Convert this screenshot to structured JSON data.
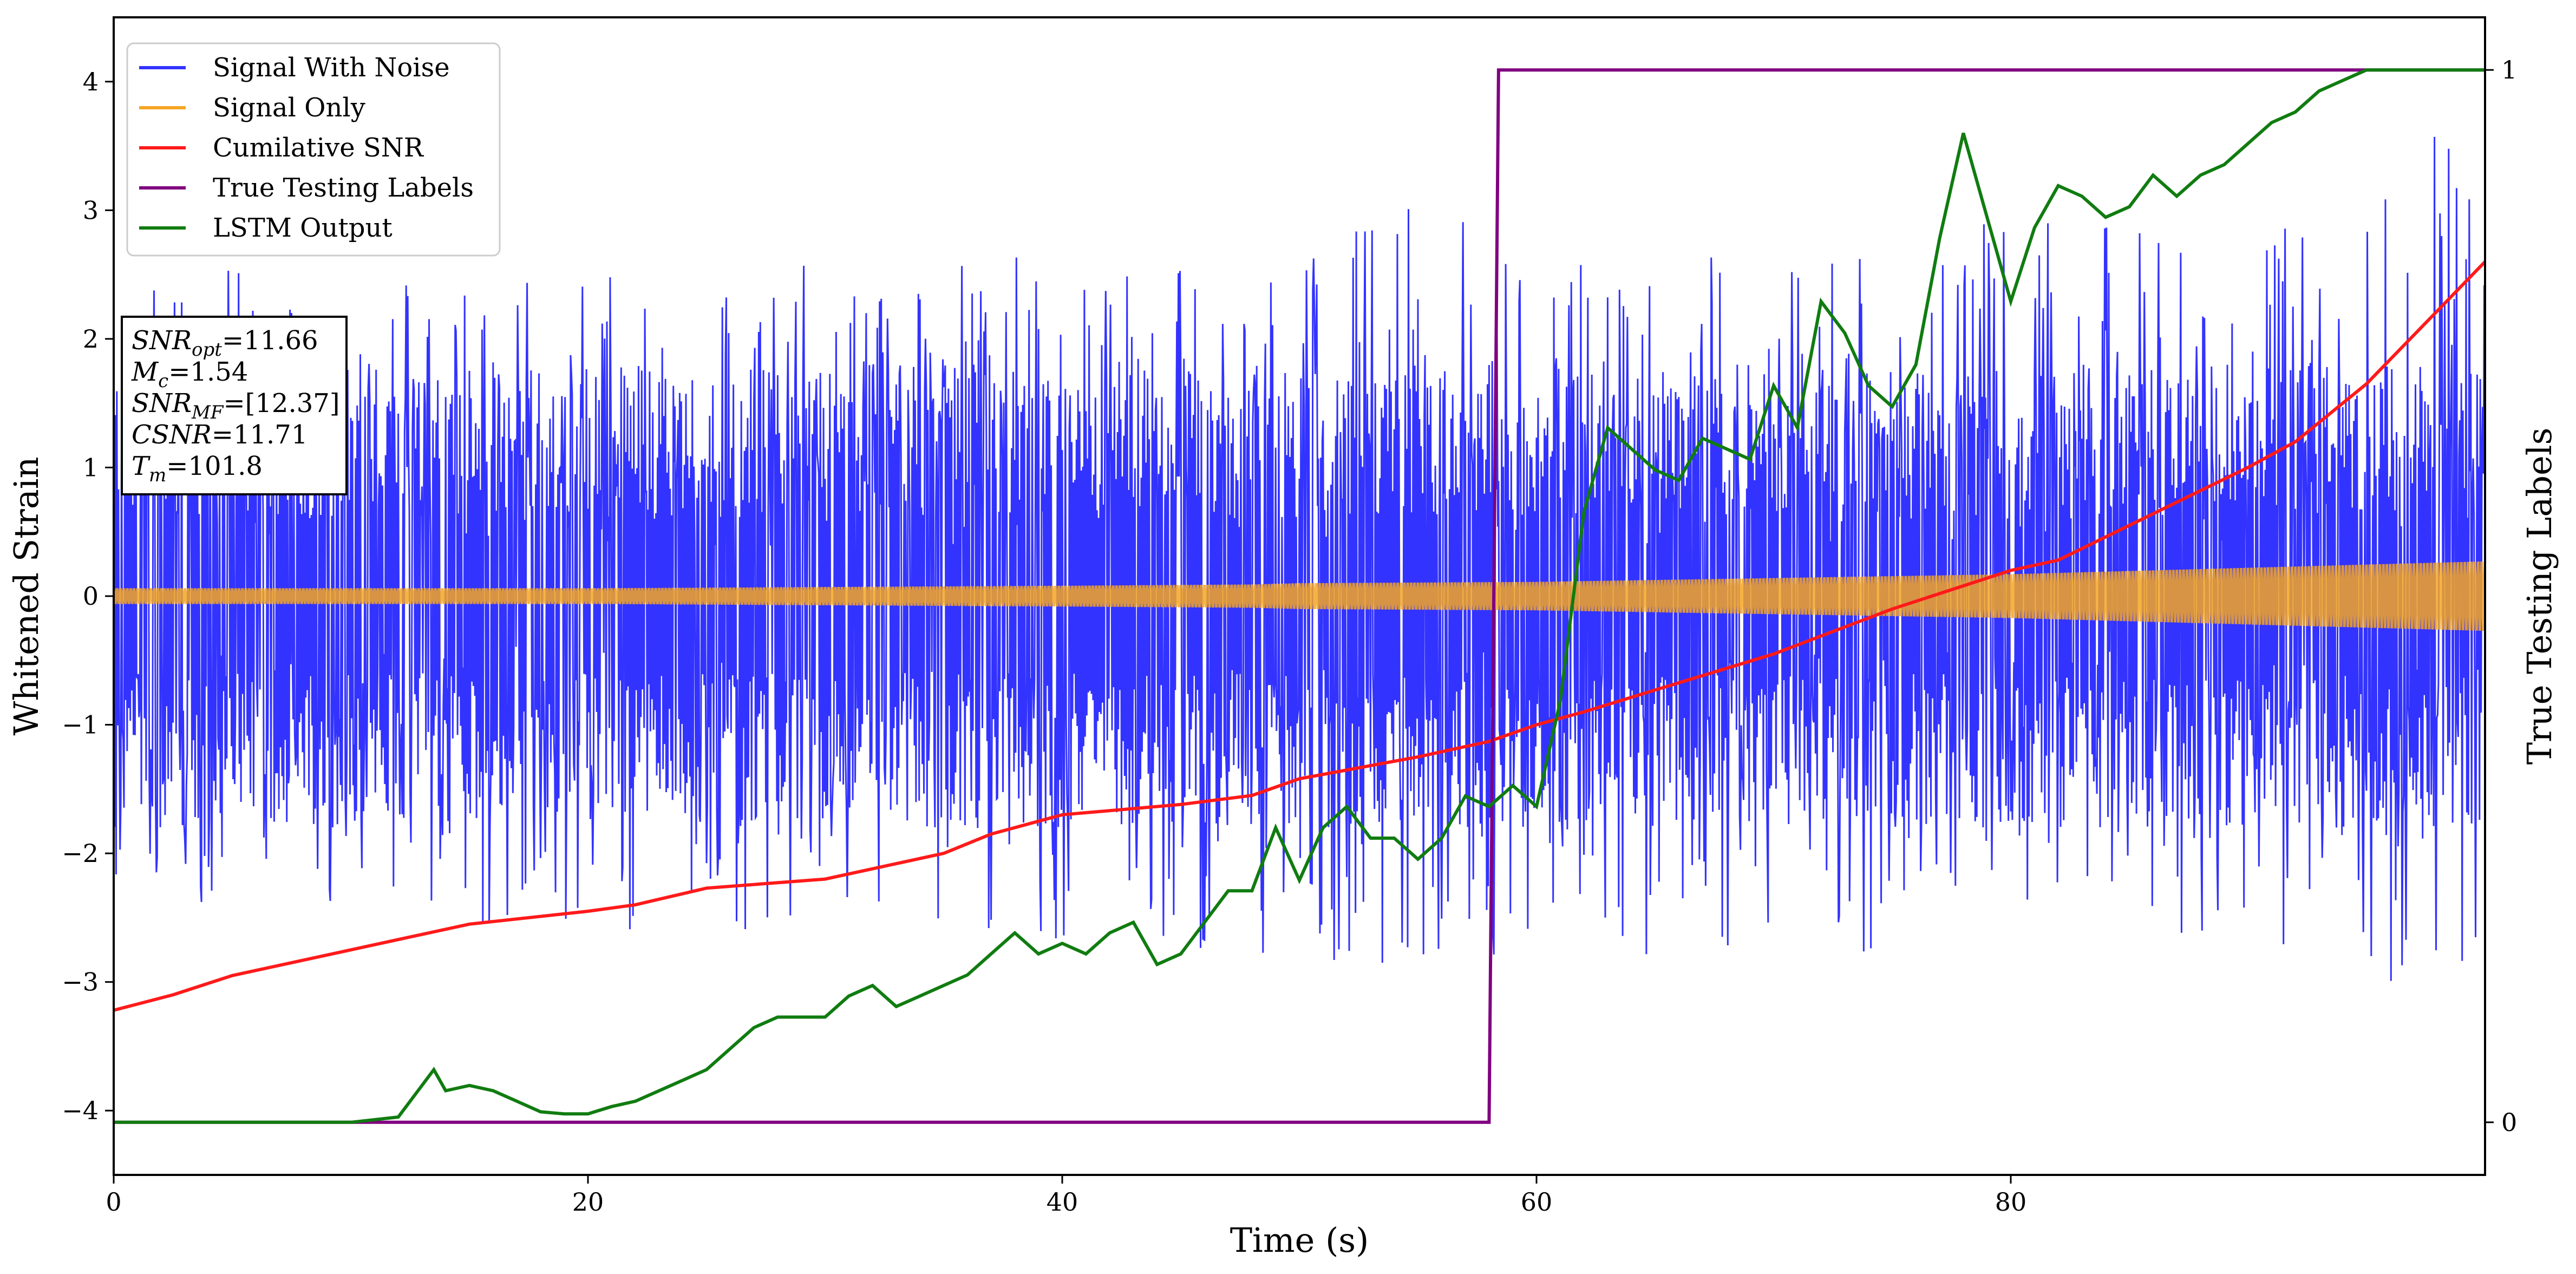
{
  "chart_data": {
    "type": "line",
    "xlabel": "Time (s)",
    "ylabel": "Whitened Strain",
    "y2label": "True Testing Labels",
    "xlim": [
      0,
      100
    ],
    "ylim": [
      -4.5,
      4.5
    ],
    "y2lim": [
      -0.05,
      1.05
    ],
    "xticks": [
      0,
      20,
      40,
      60,
      80
    ],
    "yticks": [
      -4,
      -3,
      -2,
      -1,
      0,
      1,
      2,
      3,
      4
    ],
    "y2ticks": [
      0,
      1
    ],
    "legend_position": "upper-left",
    "series": [
      {
        "name": "Signal With Noise",
        "axis": "left",
        "color": "#3333ff",
        "envelope": {
          "x": [
            0,
            10,
            20,
            30,
            40,
            50,
            55,
            60,
            65,
            70,
            75,
            80,
            85,
            90,
            95,
            98,
            100
          ],
          "upper": [
            2.5,
            2.6,
            2.6,
            2.6,
            2.7,
            2.7,
            3.2,
            2.6,
            2.7,
            2.7,
            2.9,
            2.9,
            2.9,
            2.8,
            3.0,
            4.1,
            2.8
          ],
          "lower": [
            -2.4,
            -2.6,
            -2.6,
            -2.6,
            -2.7,
            -2.8,
            -3.0,
            -2.7,
            -2.8,
            -2.8,
            -2.8,
            -2.8,
            -2.8,
            -2.8,
            -2.8,
            -3.6,
            -2.6
          ]
        }
      },
      {
        "name": "Signal Only",
        "axis": "left",
        "color": "#f5a623",
        "amplitude": {
          "x": [
            0,
            20,
            30,
            40,
            48,
            50,
            60,
            70,
            80,
            90,
            100
          ],
          "values": [
            0.06,
            0.06,
            0.07,
            0.08,
            0.09,
            0.1,
            0.11,
            0.14,
            0.17,
            0.22,
            0.27
          ]
        }
      },
      {
        "name": "Cumilative SNR",
        "axis": "left",
        "color": "#ff1a1a",
        "x": [
          0,
          2.5,
          5,
          10,
          15,
          20,
          22,
          25,
          30,
          35,
          37,
          40,
          45,
          48,
          50,
          55,
          58,
          60,
          62,
          65,
          70,
          75,
          78,
          80,
          82,
          85,
          90,
          92,
          95,
          100
        ],
        "y": [
          -3.22,
          -3.1,
          -2.95,
          -2.75,
          -2.55,
          -2.45,
          -2.4,
          -2.27,
          -2.2,
          -2.0,
          -1.85,
          -1.7,
          -1.62,
          -1.55,
          -1.42,
          -1.25,
          -1.13,
          -1.0,
          -0.9,
          -0.73,
          -0.45,
          -0.1,
          0.08,
          0.2,
          0.28,
          0.55,
          1.0,
          1.2,
          1.65,
          2.6
        ]
      },
      {
        "name": "True Testing Labels",
        "axis": "right",
        "color": "#800080",
        "x": [
          0,
          58,
          58.4,
          100
        ],
        "y": [
          0,
          0,
          1,
          1
        ]
      },
      {
        "name": "LSTM Output",
        "axis": "right",
        "color": "#107c10",
        "x": [
          0,
          10,
          12,
          13.5,
          14,
          15,
          16,
          17,
          18,
          19,
          20,
          21,
          22,
          23,
          24,
          25,
          26,
          27,
          28,
          29,
          30,
          31,
          32,
          33,
          34,
          35,
          36,
          37,
          38,
          39,
          40,
          41,
          42,
          43,
          44,
          45,
          46,
          47,
          48,
          49,
          50,
          51,
          52,
          53,
          54,
          55,
          56,
          57,
          58,
          59,
          60,
          61,
          62,
          63,
          64,
          65,
          66,
          67,
          68,
          69,
          70,
          71,
          72,
          73,
          74,
          75,
          76,
          77,
          78,
          79,
          80,
          81,
          82,
          83,
          84,
          85,
          86,
          87,
          88,
          89,
          90,
          91,
          92,
          93,
          94,
          95,
          96,
          97,
          98,
          100
        ],
        "y": [
          0,
          0,
          0.005,
          0.05,
          0.03,
          0.035,
          0.03,
          0.02,
          0.01,
          0.008,
          0.008,
          0.015,
          0.02,
          0.03,
          0.04,
          0.05,
          0.07,
          0.09,
          0.1,
          0.1,
          0.1,
          0.12,
          0.13,
          0.11,
          0.12,
          0.13,
          0.14,
          0.16,
          0.18,
          0.16,
          0.17,
          0.16,
          0.18,
          0.19,
          0.15,
          0.16,
          0.19,
          0.22,
          0.22,
          0.28,
          0.23,
          0.28,
          0.3,
          0.27,
          0.27,
          0.25,
          0.27,
          0.31,
          0.3,
          0.32,
          0.3,
          0.4,
          0.58,
          0.66,
          0.64,
          0.62,
          0.61,
          0.65,
          0.64,
          0.63,
          0.7,
          0.66,
          0.78,
          0.75,
          0.7,
          0.68,
          0.72,
          0.84,
          0.94,
          0.86,
          0.78,
          0.85,
          0.89,
          0.88,
          0.86,
          0.87,
          0.9,
          0.88,
          0.9,
          0.91,
          0.93,
          0.95,
          0.96,
          0.98,
          0.99,
          1,
          1,
          1,
          1,
          1
        ]
      }
    ],
    "annotation": {
      "lines": [
        {
          "label": "SNR",
          "subscript": "opt",
          "value": "=11.66"
        },
        {
          "label": "M",
          "subscript": "c",
          "value": "=1.54"
        },
        {
          "label": "SNR",
          "subscript": "MF",
          "value": "=[12.37]"
        },
        {
          "label": "CSNR",
          "subscript": "",
          "value": "=11.71"
        },
        {
          "label": "T",
          "subscript": "m",
          "value": "=101.8"
        }
      ]
    }
  }
}
